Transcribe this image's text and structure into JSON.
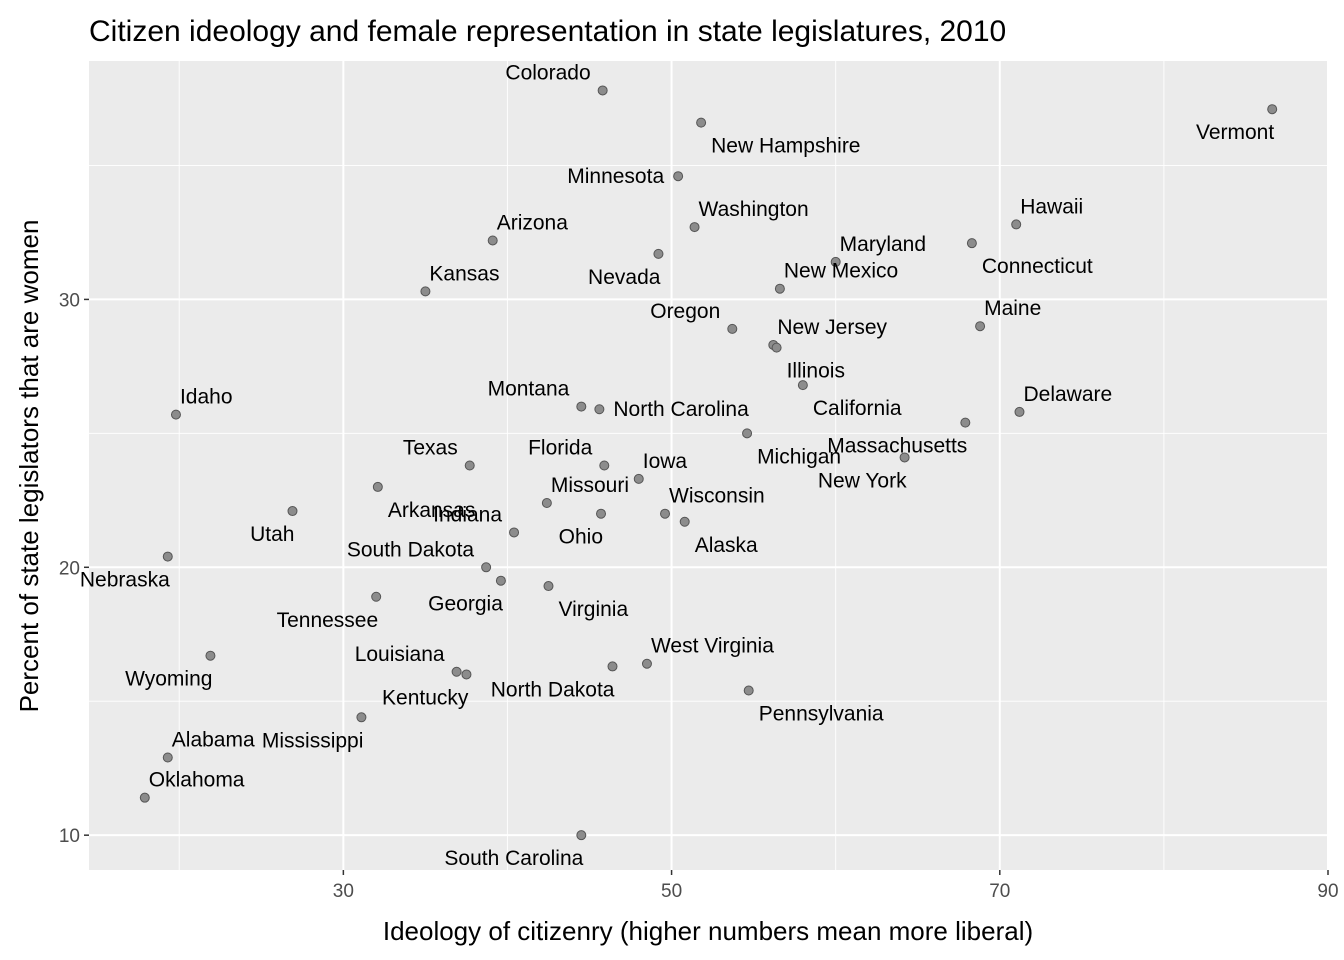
{
  "chart_data": {
    "type": "scatter",
    "title": "Citizen ideology and female representation in state legislatures, 2010",
    "xlabel": "Ideology of citizenry (higher numbers mean more liberal)",
    "ylabel": "Percent of state legislators that are women",
    "xlim": [
      14.5,
      90
    ],
    "ylim": [
      8.7,
      38.9
    ],
    "x_ticks": [
      30,
      50,
      70,
      90
    ],
    "x_tick_labels": [
      "30",
      "50",
      "70",
      "90"
    ],
    "x_minor_ticks": [
      20,
      40,
      60,
      80
    ],
    "y_ticks": [
      10,
      20,
      30
    ],
    "y_tick_labels": [
      "10",
      "20",
      "30"
    ],
    "y_minor_ticks": [
      15,
      25,
      35
    ],
    "grid": true,
    "background": "#ebebeb",
    "grid_color": "#ffffff",
    "point_color": "#8c8c8c",
    "point_stroke": "#555555",
    "points": [
      {
        "label": "Colorado",
        "x": 45.8,
        "y": 37.8,
        "pos": "above-left"
      },
      {
        "label": "Vermont",
        "x": 86.6,
        "y": 37.1,
        "pos": "below-left"
      },
      {
        "label": "New Hampshire",
        "x": 51.8,
        "y": 36.6,
        "pos": "below-right"
      },
      {
        "label": "Minnesota",
        "x": 50.4,
        "y": 34.6,
        "pos": "left"
      },
      {
        "label": "Washington",
        "x": 51.4,
        "y": 32.7,
        "pos": "above-right"
      },
      {
        "label": "Hawaii",
        "x": 71.0,
        "y": 32.8,
        "pos": "above-right"
      },
      {
        "label": "Arizona",
        "x": 39.1,
        "y": 32.2,
        "pos": "above-right"
      },
      {
        "label": "Connecticut",
        "x": 68.3,
        "y": 32.1,
        "pos": "below-right"
      },
      {
        "label": "Nevada",
        "x": 49.2,
        "y": 31.7,
        "pos": "below-left"
      },
      {
        "label": "Maryland",
        "x": 60.0,
        "y": 31.4,
        "pos": "above-right"
      },
      {
        "label": "New Mexico",
        "x": 56.6,
        "y": 30.4,
        "pos": "above-right"
      },
      {
        "label": "Kansas",
        "x": 35.0,
        "y": 30.3,
        "pos": "above-right"
      },
      {
        "label": "Oregon",
        "x": 53.7,
        "y": 28.9,
        "pos": "above-left"
      },
      {
        "label": "Maine",
        "x": 68.8,
        "y": 29.0,
        "pos": "above-right"
      },
      {
        "label": "New Jersey",
        "x": 56.2,
        "y": 28.3,
        "pos": "above-right"
      },
      {
        "label": "Illinois",
        "x": 56.4,
        "y": 28.2,
        "pos": "below-right"
      },
      {
        "label": "California",
        "x": 58.0,
        "y": 26.8,
        "pos": "below-right"
      },
      {
        "label": "Idaho",
        "x": 19.8,
        "y": 25.7,
        "pos": "above-right"
      },
      {
        "label": "Montana",
        "x": 44.5,
        "y": 26.0,
        "pos": "above-left"
      },
      {
        "label": "North Carolina",
        "x": 45.6,
        "y": 25.9,
        "pos": "right"
      },
      {
        "label": "Delaware",
        "x": 71.2,
        "y": 25.8,
        "pos": "above-right"
      },
      {
        "label": "Massachusetts",
        "x": 67.9,
        "y": 25.4,
        "pos": "below-left"
      },
      {
        "label": "Michigan",
        "x": 54.6,
        "y": 25.0,
        "pos": "below-right"
      },
      {
        "label": "New York",
        "x": 64.2,
        "y": 24.1,
        "pos": "below-left"
      },
      {
        "label": "Texas",
        "x": 37.7,
        "y": 23.8,
        "pos": "above-left"
      },
      {
        "label": "Florida",
        "x": 45.9,
        "y": 23.8,
        "pos": "above-left"
      },
      {
        "label": "Iowa",
        "x": 48.0,
        "y": 23.3,
        "pos": "above-right"
      },
      {
        "label": "Missouri",
        "x": 42.4,
        "y": 22.4,
        "pos": "above-right"
      },
      {
        "label": "Arkansas",
        "x": 32.1,
        "y": 23.0,
        "pos": "below-right"
      },
      {
        "label": "Utah",
        "x": 26.9,
        "y": 22.1,
        "pos": "below-left"
      },
      {
        "label": "Ohio",
        "x": 45.7,
        "y": 22.0,
        "pos": "below-left"
      },
      {
        "label": "Wisconsin",
        "x": 49.6,
        "y": 22.0,
        "pos": "above-right"
      },
      {
        "label": "Alaska",
        "x": 50.8,
        "y": 21.7,
        "pos": "below-right"
      },
      {
        "label": "Indiana",
        "x": 40.4,
        "y": 21.3,
        "pos": "above-left"
      },
      {
        "label": "Nebraska",
        "x": 19.3,
        "y": 20.4,
        "pos": "below-left"
      },
      {
        "label": "South Dakota",
        "x": 38.7,
        "y": 20.0,
        "pos": "above-left"
      },
      {
        "label": "Georgia",
        "x": 39.6,
        "y": 19.5,
        "pos": "below-left"
      },
      {
        "label": "Virginia",
        "x": 42.5,
        "y": 19.3,
        "pos": "below-right"
      },
      {
        "label": "Tennessee",
        "x": 32.0,
        "y": 18.9,
        "pos": "below-left"
      },
      {
        "label": "Wyoming",
        "x": 21.9,
        "y": 16.7,
        "pos": "below-left"
      },
      {
        "label": "West Virginia",
        "x": 48.5,
        "y": 16.4,
        "pos": "above-right"
      },
      {
        "label": "North Dakota",
        "x": 46.4,
        "y": 16.3,
        "pos": "below-left"
      },
      {
        "label": "Louisiana",
        "x": 36.9,
        "y": 16.1,
        "pos": "above-left"
      },
      {
        "label": "Kentucky",
        "x": 37.5,
        "y": 16.0,
        "pos": "below-left"
      },
      {
        "label": "Pennsylvania",
        "x": 54.7,
        "y": 15.4,
        "pos": "below-right"
      },
      {
        "label": "Mississippi",
        "x": 31.1,
        "y": 14.4,
        "pos": "below-left"
      },
      {
        "label": "Alabama",
        "x": 19.3,
        "y": 12.9,
        "pos": "above-right"
      },
      {
        "label": "Oklahoma",
        "x": 17.9,
        "y": 11.4,
        "pos": "above-right"
      },
      {
        "label": "South Carolina",
        "x": 44.5,
        "y": 10.0,
        "pos": "below-left"
      }
    ]
  }
}
